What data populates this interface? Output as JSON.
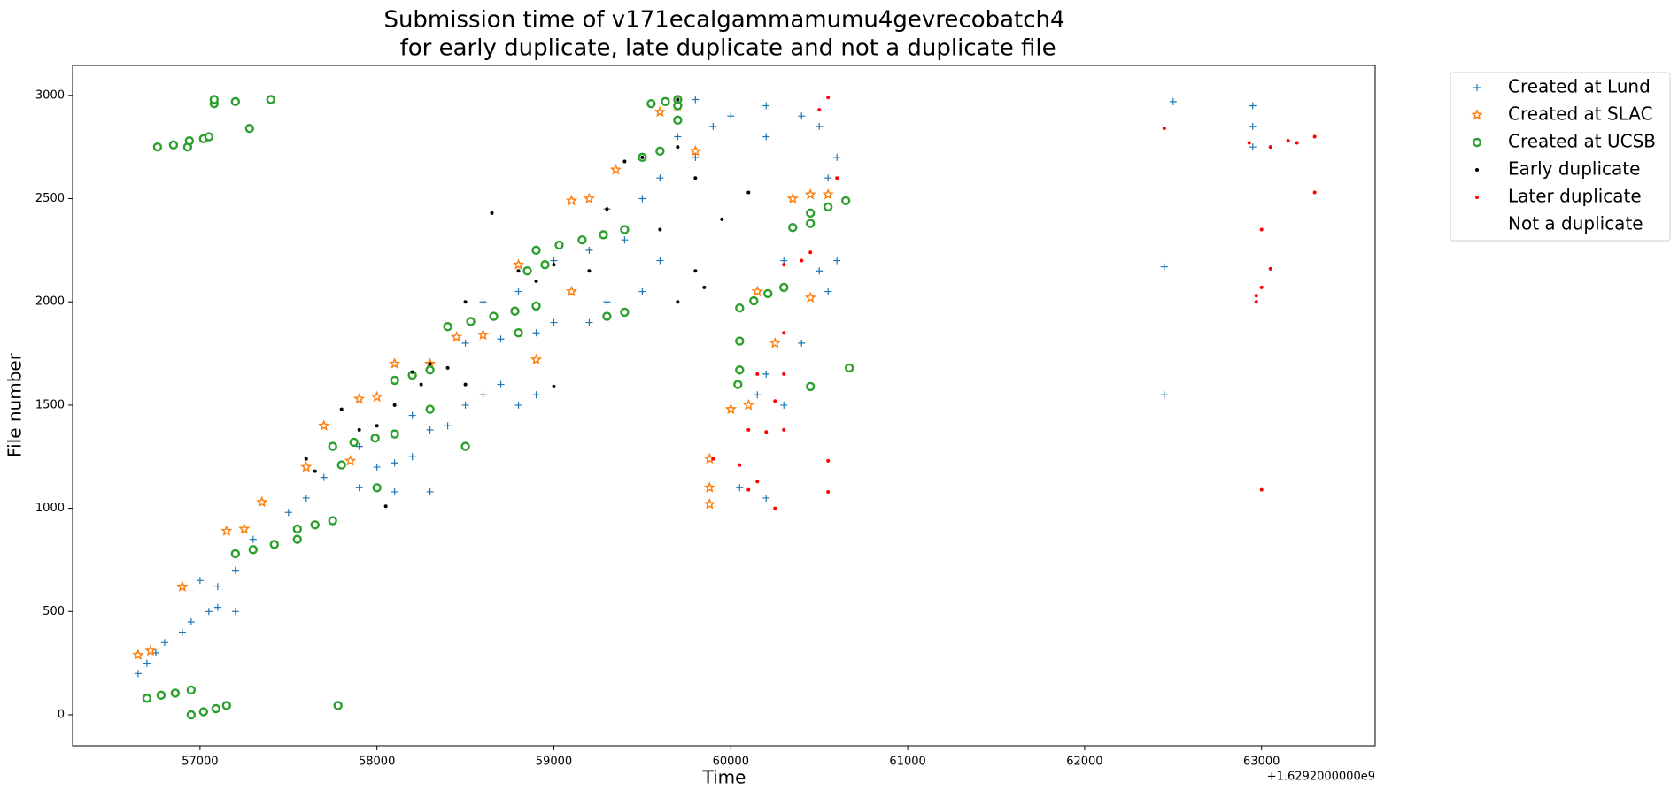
{
  "chart_data": {
    "type": "scatter",
    "title": [
      "Submission time of v171ecalgammamumu4gevrecobatch4",
      " for early duplicate, late duplicate and not a duplicate file"
    ],
    "x_label": "Time",
    "y_label": "File number",
    "x_offset_label": "+1.6292000000e9",
    "xlim": [
      56280,
      63642
    ],
    "ylim": [
      -150,
      3145
    ],
    "xticks": [
      57000,
      58000,
      59000,
      60000,
      61000,
      62000,
      63000
    ],
    "yticks": [
      0,
      500,
      1000,
      1500,
      2000,
      2500,
      3000
    ],
    "legend": "outside upper right",
    "series": [
      {
        "name": "Created at Lund",
        "color": "#1f77b4",
        "marker": "plus",
        "x": [
          56650,
          56700,
          56750,
          56800,
          56900,
          56950,
          57050,
          57100,
          57200,
          57000,
          57100,
          57200,
          57300,
          57500,
          57600,
          57700,
          57900,
          58000,
          58100,
          58200,
          57900,
          58300,
          58400,
          58200,
          58500,
          58600,
          58700,
          58800,
          58900,
          58500,
          58700,
          58900,
          59000,
          58600,
          58800,
          59100,
          59300,
          59000,
          59200,
          59400,
          59300,
          59500,
          59600,
          59800,
          59700,
          59900,
          60000,
          60200,
          60200,
          59800,
          60400,
          60500,
          60600,
          60550,
          60600,
          60500,
          60300,
          60400,
          60200,
          60300,
          60150,
          59500,
          59600,
          58100,
          58300,
          62450,
          62450,
          62500,
          62950,
          62950,
          62950,
          59200,
          60550,
          60200,
          60050
        ],
        "values": [
          200,
          250,
          300,
          350,
          400,
          450,
          500,
          520,
          500,
          650,
          620,
          700,
          850,
          980,
          1050,
          1150,
          1100,
          1200,
          1220,
          1250,
          1300,
          1380,
          1400,
          1450,
          1500,
          1550,
          1600,
          1500,
          1550,
          1800,
          1820,
          1850,
          1900,
          2000,
          2050,
          2050,
          2000,
          2200,
          2250,
          2300,
          2450,
          2500,
          2600,
          2700,
          2800,
          2850,
          2900,
          2950,
          2800,
          2980,
          2900,
          2850,
          2700,
          2600,
          2200,
          2150,
          2200,
          1800,
          1650,
          1500,
          1550,
          2050,
          2200,
          1080,
          1080,
          2170,
          1550,
          2970,
          2950,
          2850,
          2750,
          1900,
          2050,
          1050,
          1100
        ]
      },
      {
        "name": "Created at SLAC",
        "color": "#ff7f0e",
        "marker": "star",
        "x": [
          56650,
          56720,
          56900,
          57150,
          57250,
          57350,
          57600,
          57700,
          57850,
          57900,
          58000,
          58100,
          58300,
          58450,
          58600,
          58900,
          58800,
          59100,
          59100,
          59200,
          59350,
          59600,
          59700,
          59800,
          59880,
          59880,
          59880,
          60000,
          60100,
          60250,
          60150,
          60350,
          60450,
          60550,
          60450
        ],
        "values": [
          290,
          310,
          620,
          890,
          900,
          1030,
          1200,
          1400,
          1230,
          1530,
          1540,
          1700,
          1700,
          1830,
          1840,
          1720,
          2180,
          2050,
          2490,
          2500,
          2640,
          2920,
          2950,
          2730,
          1020,
          1100,
          1240,
          1480,
          1500,
          1800,
          2050,
          2500,
          2520,
          2520,
          2020
        ]
      },
      {
        "name": "Created at UCSB",
        "color": "#2ca02c",
        "marker": "circle",
        "x": [
          56760,
          56850,
          56930,
          56940,
          57020,
          57050,
          57080,
          57080,
          57200,
          57280,
          57400,
          57780,
          56700,
          56780,
          56860,
          56950,
          56950,
          57020,
          57090,
          57150,
          57200,
          57300,
          57420,
          57550,
          57550,
          57650,
          57750,
          57750,
          57870,
          57990,
          58100,
          58100,
          58200,
          58300,
          58400,
          58530,
          58660,
          58780,
          58900,
          58900,
          59030,
          59160,
          59280,
          59400,
          59500,
          59600,
          59550,
          59630,
          59700,
          60050,
          60130,
          60210,
          60300,
          60350,
          60450,
          60450,
          60550,
          60650,
          59300,
          59400,
          60050,
          60050,
          60040,
          60450,
          60670,
          58500,
          57800,
          58000,
          58800,
          59700,
          59700,
          58850,
          58950,
          58300
        ],
        "values": [
          2750,
          2760,
          2750,
          2780,
          2790,
          2800,
          2960,
          2980,
          2970,
          2840,
          2980,
          45,
          80,
          95,
          105,
          120,
          0,
          15,
          30,
          45,
          780,
          800,
          825,
          850,
          900,
          920,
          940,
          1300,
          1320,
          1340,
          1360,
          1620,
          1645,
          1670,
          1880,
          1905,
          1930,
          1955,
          1980,
          2250,
          2275,
          2300,
          2325,
          2350,
          2700,
          2730,
          2960,
          2970,
          2980,
          1970,
          2005,
          2040,
          2070,
          2360,
          2380,
          2430,
          2460,
          2490,
          1930,
          1950,
          1810,
          1670,
          1600,
          1590,
          1680,
          1300,
          1210,
          1100,
          1850,
          2880,
          2950,
          2150,
          2180,
          1480
        ]
      },
      {
        "name": "Early duplicate",
        "color": "#000000",
        "marker": "dot",
        "x": [
          57600,
          57650,
          57800,
          57900,
          58000,
          58100,
          58200,
          58300,
          58400,
          58500,
          58500,
          58650,
          58800,
          58900,
          59000,
          59200,
          59300,
          59400,
          59500,
          59600,
          59700,
          59800,
          59700,
          59800,
          59850,
          59950,
          60100,
          58050,
          58250,
          59000,
          59700
        ],
        "values": [
          1240,
          1180,
          1480,
          1380,
          1400,
          1500,
          1660,
          1700,
          1680,
          1600,
          2000,
          2430,
          2150,
          2100,
          2180,
          2150,
          2450,
          2680,
          2700,
          2350,
          2750,
          2600,
          2000,
          2150,
          2070,
          2400,
          2530,
          1010,
          1600,
          1590,
          2980
        ]
      },
      {
        "name": "Later duplicate",
        "color": "#ff0000",
        "marker": "dot",
        "x": [
          59900,
          60050,
          60100,
          60150,
          60250,
          60100,
          60200,
          60300,
          60150,
          60250,
          60300,
          60300,
          60300,
          60400,
          60450,
          60500,
          60550,
          60600,
          60550,
          60550,
          62450,
          62930,
          63000,
          63050,
          63000,
          62970,
          62970,
          63000,
          63050,
          63150,
          63200,
          63300,
          63300
        ],
        "values": [
          1240,
          1210,
          1090,
          1130,
          1000,
          1380,
          1370,
          1380,
          1650,
          1520,
          1650,
          1850,
          2180,
          2200,
          2240,
          2930,
          2990,
          2600,
          1230,
          1080,
          2840,
          2770,
          2350,
          2160,
          2070,
          2030,
          2000,
          1090,
          2750,
          2780,
          2770,
          2800,
          2530
        ]
      },
      {
        "name": "Not a duplicate",
        "color": "#ffffff",
        "marker": "none",
        "x": [],
        "values": []
      }
    ]
  }
}
